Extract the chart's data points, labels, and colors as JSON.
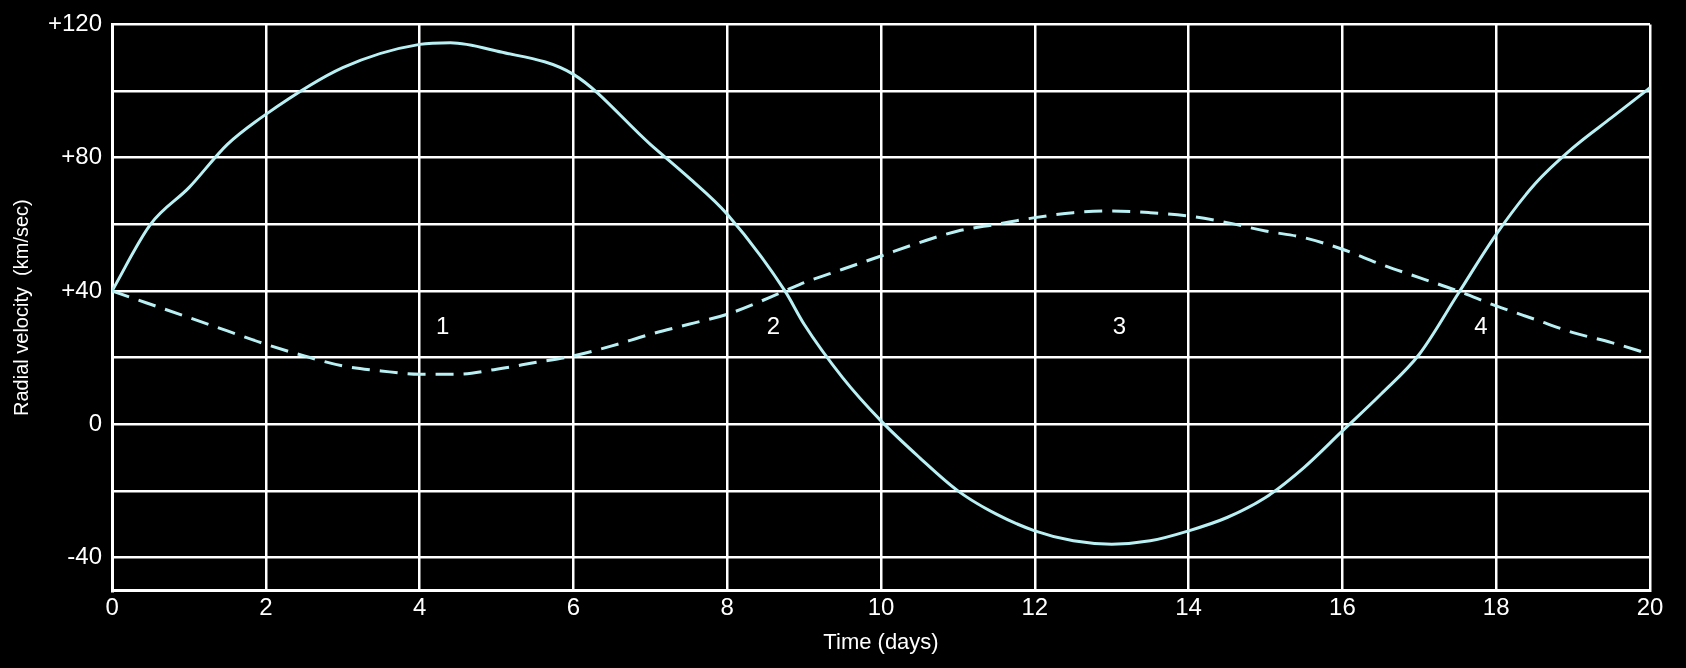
{
  "chart_data": {
    "type": "line",
    "xlabel": "Time (days)",
    "ylabel": "Radial velocity  (km/sec)",
    "xlim": [
      0,
      20
    ],
    "xticks": [
      0,
      2,
      4,
      6,
      8,
      10,
      12,
      14,
      16,
      18,
      20
    ],
    "ylim": [
      -50,
      120
    ],
    "yticks": [
      {
        "value": -40,
        "label": "-40"
      },
      {
        "value": -20,
        "label": null
      },
      {
        "value": 0,
        "label": "0"
      },
      {
        "value": 20,
        "label": null
      },
      {
        "value": 40,
        "label": "+40"
      },
      {
        "value": 60,
        "label": null
      },
      {
        "value": 80,
        "label": "+80"
      },
      {
        "value": 100,
        "label": null
      },
      {
        "value": 120,
        "label": "+120"
      }
    ],
    "grid": true,
    "legend": false,
    "marker": "none",
    "series": [
      {
        "color": "#b8f0f4",
        "line_style": "solid",
        "x": [
          0,
          0.5,
          1,
          1.5,
          2,
          3,
          4,
          4.4,
          5,
          6,
          7,
          7.5,
          8,
          8.75,
          9,
          9.5,
          10,
          10.5,
          11,
          11.5,
          12,
          12.5,
          13,
          13.5,
          14,
          14.5,
          15,
          15.5,
          16,
          16.5,
          17,
          17.5,
          18,
          18.5,
          19,
          19.5,
          20
        ],
        "values": [
          40,
          60,
          71,
          84,
          93,
          107,
          114,
          114.5,
          112,
          105,
          84,
          74,
          63,
          40,
          30,
          14,
          1,
          -10,
          -20,
          -27,
          -32,
          -35,
          -36,
          -35,
          -32,
          -28,
          -22,
          -13,
          -2,
          9,
          21,
          39,
          57,
          72,
          83,
          92,
          101
        ]
      },
      {
        "color": "#b8f0f4",
        "line_style": "dashed",
        "x": [
          0,
          0.5,
          1,
          1.5,
          2,
          2.5,
          3,
          3.5,
          4,
          4.5,
          5,
          5.5,
          6,
          6.5,
          7,
          7.5,
          8,
          8.75,
          9,
          9.5,
          10,
          10.5,
          11,
          11.5,
          12,
          12.5,
          13,
          13.5,
          14,
          14.5,
          15,
          15.5,
          16,
          16.5,
          17,
          17.5,
          18,
          18.5,
          19,
          19.5,
          20
        ],
        "values": [
          40,
          36,
          32,
          28,
          24,
          20.5,
          17.5,
          16,
          15,
          15,
          16.5,
          18.5,
          20.5,
          23.5,
          27,
          30,
          33,
          40,
          42.5,
          46.5,
          50.5,
          54.5,
          58,
          60,
          62,
          63.5,
          64,
          63.5,
          62.5,
          60.5,
          58,
          56,
          52.5,
          48,
          44,
          40,
          35.5,
          31.5,
          27.5,
          24.5,
          21
        ]
      }
    ],
    "annotations": [
      "1",
      "2",
      "3",
      "4"
    ]
  }
}
